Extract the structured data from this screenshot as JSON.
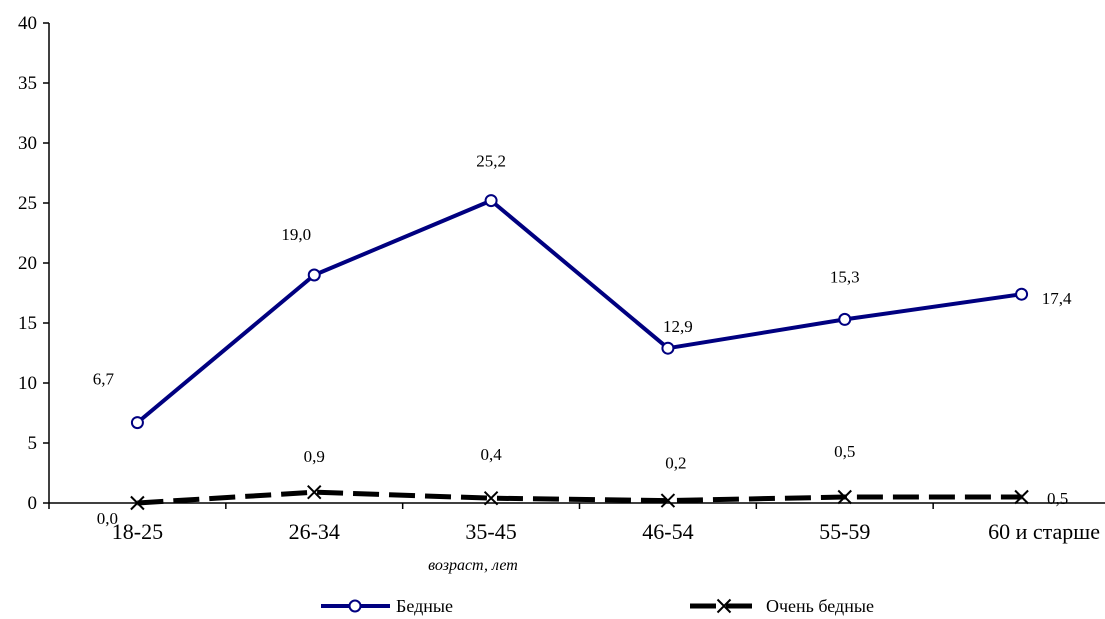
{
  "chart_data": {
    "type": "line",
    "title": "",
    "xlabel": "возраст, лет",
    "ylabel": "",
    "categories": [
      "18-25",
      "26-34",
      "35-45",
      "46-54",
      "55-59",
      "60  и старше"
    ],
    "ylim": [
      0,
      40
    ],
    "yticks": [
      0,
      5,
      10,
      15,
      20,
      25,
      30,
      35,
      40
    ],
    "grid": false,
    "legend": "bottom",
    "series": [
      {
        "name": "Бедные",
        "values": [
          6.7,
          19.0,
          25.2,
          12.9,
          15.3,
          17.4
        ],
        "labels": [
          "6,7",
          "19,0",
          "25,2",
          "12,9",
          "15,3",
          "17,4"
        ],
        "color": "#000080",
        "marker": "circle",
        "dash": "solid"
      },
      {
        "name": "Очень бедные",
        "values": [
          0.0,
          0.9,
          0.4,
          0.2,
          0.5,
          0.5
        ],
        "labels": [
          "0,0",
          "0,9",
          "0,4",
          "0,2",
          "0,5",
          "0,5"
        ],
        "color": "#000000",
        "marker": "x",
        "dash": "dashed"
      }
    ]
  }
}
